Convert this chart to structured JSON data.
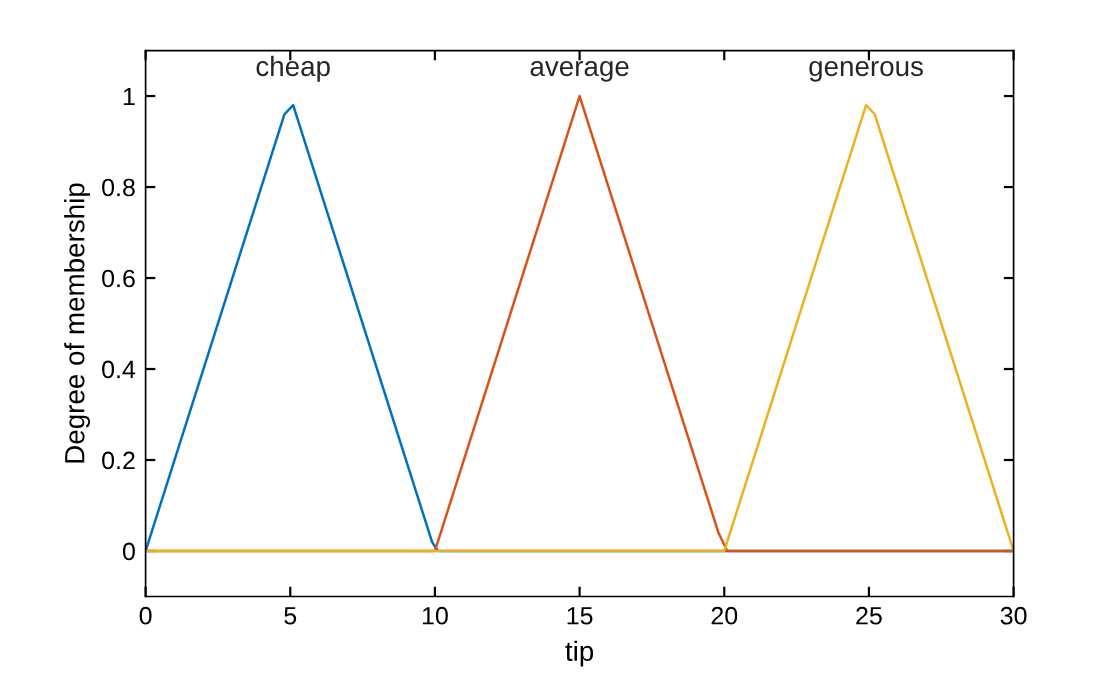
{
  "chart_data": {
    "type": "line",
    "xlabel": "tip",
    "ylabel": "Degree of membership",
    "xlim": [
      0,
      30
    ],
    "ylim": [
      -0.1,
      1.1
    ],
    "xticks": [
      0,
      5,
      10,
      15,
      20,
      25,
      30
    ],
    "yticks": [
      0,
      0.2,
      0.4,
      0.6,
      0.8,
      1
    ],
    "grid": false,
    "legend": false,
    "marker": "none",
    "line_style": "solid",
    "series": [
      {
        "name": "cheap",
        "color": "#0072bd",
        "x": [
          0,
          4.8,
          5.1,
          9.9,
          10.1,
          30
        ],
        "values": [
          0,
          0.96,
          0.98,
          0.02,
          0,
          0
        ]
      },
      {
        "name": "average",
        "color": "#d95319",
        "x": [
          0,
          10,
          15,
          19.8,
          20.1,
          30
        ],
        "values": [
          0,
          0,
          1,
          0.04,
          0,
          0
        ]
      },
      {
        "name": "generous",
        "color": "#edb120",
        "x": [
          0,
          20,
          24.9,
          25.2,
          30
        ],
        "values": [
          0,
          0,
          0.98,
          0.96,
          0
        ]
      }
    ]
  }
}
